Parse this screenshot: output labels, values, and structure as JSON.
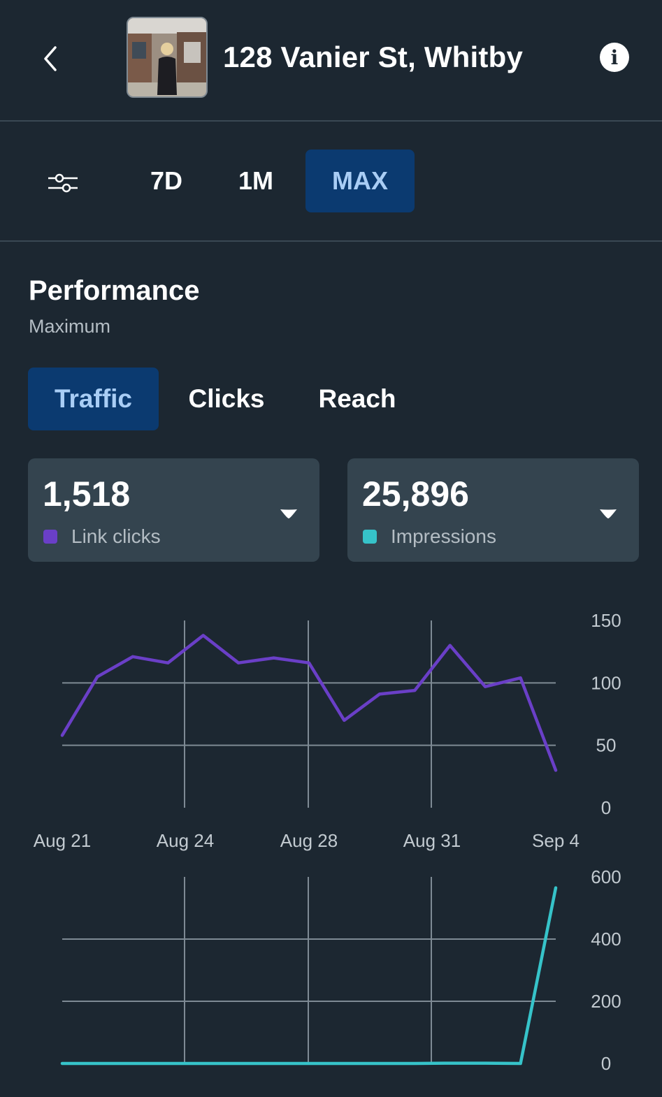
{
  "header": {
    "title": "128 Vanier St, Whitby"
  },
  "icons": {
    "back": "chevron-left-icon",
    "info": "info-icon",
    "filter": "sliders-icon",
    "dropdown": "caret-down-icon"
  },
  "range_tabs": [
    {
      "label": "7D",
      "active": false
    },
    {
      "label": "1M",
      "active": false
    },
    {
      "label": "MAX",
      "active": true
    }
  ],
  "performance": {
    "title": "Performance",
    "subtitle": "Maximum"
  },
  "metric_tabs": [
    {
      "label": "Traffic",
      "active": true
    },
    {
      "label": "Clicks",
      "active": false
    },
    {
      "label": "Reach",
      "active": false
    }
  ],
  "cards": [
    {
      "value": "1,518",
      "label": "Link clicks",
      "color": "#6a3fc7"
    },
    {
      "value": "25,896",
      "label": "Impressions",
      "color": "#36c3c9"
    }
  ],
  "colors": {
    "background": "#1c2731",
    "accent_tab": "#0b3a70",
    "accent_tab_text": "#a9cdf5",
    "card": "#34444f",
    "grid": "#7e8a94"
  },
  "chart_data": [
    {
      "type": "line",
      "series": [
        {
          "name": "Link clicks",
          "color": "#6a3fc7",
          "values": [
            58,
            105,
            121,
            116,
            138,
            116,
            120,
            116,
            70,
            91,
            94,
            130,
            97,
            104,
            30
          ]
        }
      ],
      "x_tick_labels": [
        "Aug 21",
        "Aug 24",
        "Aug 28",
        "Aug 31",
        "Sep 4"
      ],
      "y_ticks": [
        0,
        50,
        100,
        150
      ],
      "ylim": [
        0,
        150
      ],
      "grid": true
    },
    {
      "type": "line",
      "series": [
        {
          "name": "Impressions",
          "color": "#36c3c9",
          "values": [
            0,
            0,
            0,
            0,
            0,
            0,
            0,
            0,
            0,
            0,
            0,
            1,
            1,
            0,
            565
          ]
        }
      ],
      "y_ticks": [
        0,
        200,
        400,
        600
      ],
      "ylim": [
        0,
        600
      ],
      "grid": true
    }
  ]
}
